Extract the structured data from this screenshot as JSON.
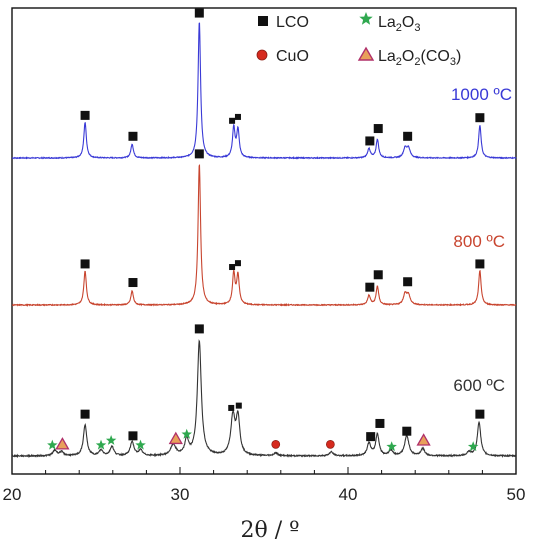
{
  "chart_data": {
    "type": "line",
    "xlabel": "2θ / º",
    "xlim": [
      20,
      50
    ],
    "xticks": [
      20,
      30,
      40,
      50
    ],
    "colors": {
      "1000": "#3a3ad6",
      "800": "#c8452f",
      "600": "#333333",
      "marker": "#111111",
      "la2o3": "#2fa84f",
      "cuo": "#d62a1e",
      "la2o2co3_fill": "#e8a05a",
      "la2o2co3_edge": "#b0306a"
    },
    "legend": [
      {
        "id": "lco",
        "label": "LCO",
        "symbol": "black-square"
      },
      {
        "id": "la2o3",
        "main": "La",
        "sub1": "2",
        "mid": "O",
        "sub2": "3",
        "rest": "",
        "symbol": "green-star"
      },
      {
        "id": "cuo",
        "label": "CuO",
        "symbol": "red-circle"
      },
      {
        "id": "la2o2co3",
        "main": "La",
        "sub1": "2",
        "mid": "O",
        "sub2": "2",
        "rest": "(CO",
        "sub3": "3",
        "end": ")",
        "symbol": "orange-triangle"
      }
    ],
    "series": [
      {
        "name": "1000 ºC",
        "color_key": "1000",
        "baseline": 0,
        "noise": 0.006,
        "peaks": [
          {
            "x": 24.35,
            "h": 0.23,
            "w": 0.09
          },
          {
            "x": 27.15,
            "h": 0.09,
            "w": 0.09
          },
          {
            "x": 31.15,
            "h": 0.88,
            "w": 0.09
          },
          {
            "x": 33.2,
            "h": 0.19,
            "w": 0.09
          },
          {
            "x": 33.45,
            "h": 0.18,
            "w": 0.09
          },
          {
            "x": 41.25,
            "h": 0.06,
            "w": 0.1
          },
          {
            "x": 41.75,
            "h": 0.12,
            "w": 0.09
          },
          {
            "x": 43.4,
            "h": 0.06,
            "w": 0.12
          },
          {
            "x": 43.6,
            "h": 0.06,
            "w": 0.12
          },
          {
            "x": 47.85,
            "h": 0.21,
            "w": 0.09
          }
        ],
        "markers": [
          {
            "x": 24.35,
            "y": 0.275,
            "symbol": "lco",
            "size": "large"
          },
          {
            "x": 27.2,
            "y": 0.14,
            "symbol": "lco",
            "size": "large"
          },
          {
            "x": 31.15,
            "y": 0.935,
            "symbol": "lco",
            "size": "large"
          },
          {
            "x": 33.1,
            "y": 0.24,
            "symbol": "lco",
            "size": "small"
          },
          {
            "x": 33.45,
            "y": 0.265,
            "symbol": "lco",
            "size": "small"
          },
          {
            "x": 41.3,
            "y": 0.11,
            "symbol": "lco",
            "size": "large"
          },
          {
            "x": 41.8,
            "y": 0.19,
            "symbol": "lco",
            "size": "large"
          },
          {
            "x": 43.55,
            "y": 0.14,
            "symbol": "lco",
            "size": "large"
          },
          {
            "x": 47.85,
            "y": 0.26,
            "symbol": "lco",
            "size": "large"
          }
        ]
      },
      {
        "name": "800 ºC",
        "color_key": "800",
        "baseline": 0,
        "noise": 0.006,
        "peaks": [
          {
            "x": 24.35,
            "h": 0.22,
            "w": 0.09
          },
          {
            "x": 27.15,
            "h": 0.09,
            "w": 0.09
          },
          {
            "x": 31.15,
            "h": 0.91,
            "w": 0.09
          },
          {
            "x": 33.2,
            "h": 0.2,
            "w": 0.09
          },
          {
            "x": 33.45,
            "h": 0.19,
            "w": 0.09
          },
          {
            "x": 41.25,
            "h": 0.06,
            "w": 0.1
          },
          {
            "x": 41.75,
            "h": 0.12,
            "w": 0.09
          },
          {
            "x": 43.4,
            "h": 0.07,
            "w": 0.12
          },
          {
            "x": 43.6,
            "h": 0.06,
            "w": 0.12
          },
          {
            "x": 47.85,
            "h": 0.22,
            "w": 0.09
          }
        ],
        "markers": [
          {
            "x": 24.35,
            "y": 0.265,
            "symbol": "lco",
            "size": "large"
          },
          {
            "x": 27.2,
            "y": 0.145,
            "symbol": "lco",
            "size": "large"
          },
          {
            "x": 31.15,
            "y": 0.975,
            "symbol": "lco",
            "size": "large"
          },
          {
            "x": 33.1,
            "y": 0.245,
            "symbol": "lco",
            "size": "small"
          },
          {
            "x": 33.45,
            "y": 0.27,
            "symbol": "lco",
            "size": "small"
          },
          {
            "x": 41.3,
            "y": 0.115,
            "symbol": "lco",
            "size": "large"
          },
          {
            "x": 41.8,
            "y": 0.195,
            "symbol": "lco",
            "size": "large"
          },
          {
            "x": 43.55,
            "y": 0.15,
            "symbol": "lco",
            "size": "large"
          },
          {
            "x": 47.85,
            "y": 0.265,
            "symbol": "lco",
            "size": "large"
          }
        ]
      },
      {
        "name": "600 ºC",
        "color_key": "600",
        "baseline": 0,
        "noise": 0.008,
        "peaks": [
          {
            "x": 22.55,
            "h": 0.035,
            "w": 0.14
          },
          {
            "x": 22.95,
            "h": 0.025,
            "w": 0.14
          },
          {
            "x": 24.35,
            "h": 0.2,
            "w": 0.12
          },
          {
            "x": 25.3,
            "h": 0.035,
            "w": 0.14
          },
          {
            "x": 25.95,
            "h": 0.06,
            "w": 0.13
          },
          {
            "x": 27.15,
            "h": 0.09,
            "w": 0.13
          },
          {
            "x": 27.65,
            "h": 0.035,
            "w": 0.14
          },
          {
            "x": 29.6,
            "h": 0.07,
            "w": 0.18
          },
          {
            "x": 30.4,
            "h": 0.1,
            "w": 0.13
          },
          {
            "x": 31.15,
            "h": 0.74,
            "w": 0.14
          },
          {
            "x": 33.15,
            "h": 0.25,
            "w": 0.15
          },
          {
            "x": 33.45,
            "h": 0.24,
            "w": 0.13
          },
          {
            "x": 35.7,
            "h": 0.018,
            "w": 0.14
          },
          {
            "x": 39.0,
            "h": 0.025,
            "w": 0.14
          },
          {
            "x": 41.25,
            "h": 0.08,
            "w": 0.13
          },
          {
            "x": 41.75,
            "h": 0.14,
            "w": 0.12
          },
          {
            "x": 42.55,
            "h": 0.035,
            "w": 0.14
          },
          {
            "x": 43.5,
            "h": 0.13,
            "w": 0.15
          },
          {
            "x": 44.45,
            "h": 0.045,
            "w": 0.14
          },
          {
            "x": 47.2,
            "h": 0.025,
            "w": 0.14
          },
          {
            "x": 47.8,
            "h": 0.22,
            "w": 0.12
          }
        ],
        "markers": [
          {
            "x": 22.4,
            "y": 0.07,
            "symbol": "la2o3"
          },
          {
            "x": 23.0,
            "y": 0.075,
            "symbol": "la2o2co3"
          },
          {
            "x": 24.35,
            "y": 0.27,
            "symbol": "lco",
            "size": "large"
          },
          {
            "x": 25.3,
            "y": 0.07,
            "symbol": "la2o3"
          },
          {
            "x": 25.9,
            "y": 0.1,
            "symbol": "la2o3"
          },
          {
            "x": 27.2,
            "y": 0.13,
            "symbol": "lco",
            "size": "large"
          },
          {
            "x": 27.65,
            "y": 0.07,
            "symbol": "la2o3"
          },
          {
            "x": 29.75,
            "y": 0.11,
            "symbol": "la2o2co3"
          },
          {
            "x": 30.4,
            "y": 0.14,
            "symbol": "la2o3"
          },
          {
            "x": 31.15,
            "y": 0.82,
            "symbol": "lco",
            "size": "large"
          },
          {
            "x": 33.05,
            "y": 0.31,
            "symbol": "lco",
            "size": "small"
          },
          {
            "x": 33.5,
            "y": 0.325,
            "symbol": "lco",
            "size": "small"
          },
          {
            "x": 35.7,
            "y": 0.075,
            "symbol": "cuo"
          },
          {
            "x": 38.95,
            "y": 0.075,
            "symbol": "cuo"
          },
          {
            "x": 41.35,
            "y": 0.125,
            "symbol": "lco",
            "size": "large"
          },
          {
            "x": 41.9,
            "y": 0.21,
            "symbol": "lco",
            "size": "large"
          },
          {
            "x": 42.6,
            "y": 0.06,
            "symbol": "la2o3"
          },
          {
            "x": 43.5,
            "y": 0.16,
            "symbol": "lco",
            "size": "large"
          },
          {
            "x": 44.5,
            "y": 0.1,
            "symbol": "la2o2co3"
          },
          {
            "x": 47.45,
            "y": 0.06,
            "symbol": "la2o3"
          },
          {
            "x": 47.85,
            "y": 0.27,
            "symbol": "lco",
            "size": "large"
          }
        ]
      }
    ]
  }
}
